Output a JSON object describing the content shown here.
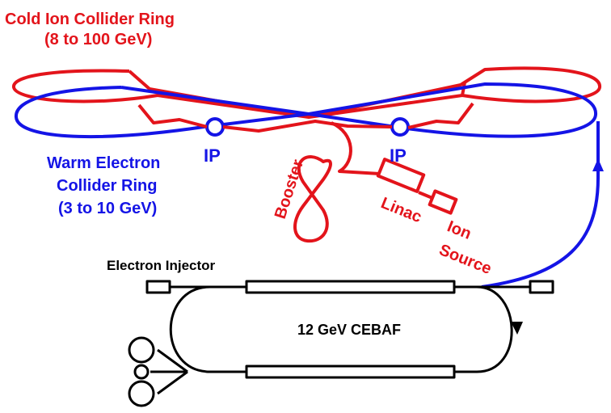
{
  "colors": {
    "ion": "#e3141b",
    "electron": "#1414e6",
    "injector": "#000000",
    "background": "#ffffff"
  },
  "labels": {
    "ion_ring_title": "Cold Ion Collider Ring",
    "ion_ring_energy": "(8 to 100 GeV)",
    "electron_ring_line1": "Warm Electron",
    "electron_ring_line2": "Collider Ring",
    "electron_ring_energy": "(3 to 10 GeV)",
    "ip_left": "IP",
    "ip_right": "IP",
    "booster": "Booster",
    "linac": "Linac",
    "ion_source_line1": "Ion",
    "ion_source_line2": "Source",
    "electron_injector": "Electron Injector",
    "cebaf": "12 GeV CEBAF"
  }
}
